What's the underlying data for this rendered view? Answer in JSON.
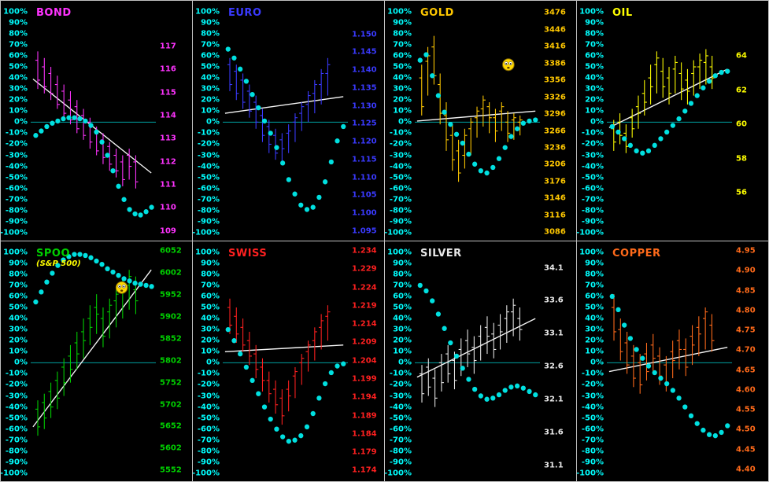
{
  "app": {
    "name": "futures-cycle-dashboard"
  },
  "colors": {
    "background": "#000000",
    "divider": "#c0c0c0",
    "percent_axis": "#00ffff",
    "zero_line": "#00b8b8",
    "cycle_dots": "#00e0e0",
    "trend_line": "#f5f5f5",
    "smiley_face": "#ffd800"
  },
  "percent_axis": {
    "top": 0.045,
    "bottom": 0.967
  },
  "percent_labels": [
    "100%",
    "90%",
    "80%",
    "70%",
    "60%",
    "50%",
    "40%",
    "30%",
    "20%",
    "10%",
    "0%",
    "-10%",
    "-20%",
    "-30%",
    "-40%",
    "-50%",
    "-60%",
    "-70%",
    "-80%",
    "-90%",
    "-100%"
  ],
  "panels": [
    {
      "id": "bond",
      "title": "BOND",
      "color": "#ff33ff",
      "price_labels": [
        "117",
        "116",
        "115",
        "114",
        "113",
        "112",
        "111",
        "110",
        "109"
      ],
      "price_axis": {
        "top": 0.19,
        "bottom": 0.96
      },
      "chart_data": {
        "type": "ohlc-cycle",
        "percent_range": [
          -100,
          100
        ],
        "bars": [
          [
            64,
            30,
            56,
            38
          ],
          [
            58,
            26,
            50,
            32
          ],
          [
            50,
            20,
            44,
            26
          ],
          [
            42,
            12,
            34,
            16
          ],
          [
            34,
            4,
            28,
            8
          ],
          [
            28,
            -2,
            20,
            2
          ],
          [
            20,
            -10,
            14,
            -6
          ],
          [
            12,
            -16,
            6,
            -12
          ],
          [
            4,
            -24,
            0,
            -18
          ],
          [
            -4,
            -30,
            -8,
            -26
          ],
          [
            -10,
            -38,
            -16,
            -32
          ],
          [
            -18,
            -44,
            -22,
            -38
          ],
          [
            -24,
            -50,
            -30,
            -44
          ],
          [
            -30,
            -58,
            -36,
            -52
          ],
          [
            -24,
            -52,
            -30,
            -40
          ],
          [
            -30,
            -60,
            -36,
            -54
          ]
        ],
        "cycle": [
          -12,
          -8,
          -4,
          -1,
          1,
          3,
          4,
          4,
          3,
          1,
          -3,
          -9,
          -18,
          -30,
          -44,
          -58,
          -70,
          -79,
          -83,
          -84,
          -81,
          -77
        ],
        "trend": [
          39,
          -46
        ],
        "smiley": null
      }
    },
    {
      "id": "euro",
      "title": "EURO",
      "color": "#3a3aff",
      "price_labels": [
        "1.150",
        "1.145",
        "1.140",
        "1.135",
        "1.130",
        "1.125",
        "1.120",
        "1.115",
        "1.110",
        "1.105",
        "1.100",
        "1.095"
      ],
      "price_axis": {
        "top": 0.14,
        "bottom": 0.96
      },
      "chart_data": {
        "type": "ohlc-cycle",
        "percent_range": [
          -100,
          100
        ],
        "bars": [
          [
            58,
            28,
            52,
            34
          ],
          [
            52,
            20,
            46,
            26
          ],
          [
            44,
            12,
            38,
            18
          ],
          [
            34,
            4,
            28,
            10
          ],
          [
            24,
            -6,
            18,
            0
          ],
          [
            12,
            -18,
            6,
            -12
          ],
          [
            2,
            -28,
            -4,
            -20
          ],
          [
            -6,
            -34,
            -12,
            -28
          ],
          [
            -10,
            -38,
            -16,
            -24
          ],
          [
            -2,
            -28,
            -10,
            -8
          ],
          [
            8,
            -18,
            0,
            4
          ],
          [
            18,
            -8,
            8,
            14
          ],
          [
            28,
            0,
            16,
            24
          ],
          [
            38,
            8,
            26,
            34
          ],
          [
            48,
            16,
            34,
            44
          ],
          [
            58,
            24,
            44,
            52
          ]
        ],
        "cycle": [
          66,
          58,
          48,
          37,
          25,
          13,
          1,
          -10,
          -23,
          -37,
          -52,
          -65,
          -75,
          -79,
          -77,
          -68,
          -54,
          -36,
          -17,
          -4
        ],
        "trend": [
          8,
          23
        ],
        "smiley": null
      }
    },
    {
      "id": "gold",
      "title": "GOLD",
      "color": "#ffc800",
      "price_labels": [
        "3476",
        "3446",
        "3416",
        "3386",
        "3356",
        "3326",
        "3296",
        "3266",
        "3236",
        "3206",
        "3176",
        "3146",
        "3116",
        "3086"
      ],
      "price_axis": {
        "top": 0.05,
        "bottom": 0.965
      },
      "chart_data": {
        "type": "ohlc-cycle",
        "percent_range": [
          -100,
          100
        ],
        "bars": [
          [
            52,
            6,
            40,
            14
          ],
          [
            68,
            24,
            55,
            60
          ],
          [
            78,
            34,
            68,
            42
          ],
          [
            44,
            -2,
            34,
            8
          ],
          [
            18,
            -26,
            6,
            -16
          ],
          [
            -2,
            -44,
            -12,
            -34
          ],
          [
            -16,
            -54,
            -26,
            -46
          ],
          [
            -6,
            -42,
            -30,
            -12
          ],
          [
            4,
            -30,
            -6,
            0
          ],
          [
            14,
            -14,
            4,
            10
          ],
          [
            24,
            -4,
            12,
            20
          ],
          [
            18,
            -10,
            14,
            4
          ],
          [
            12,
            -18,
            4,
            -8
          ],
          [
            18,
            -8,
            10,
            14
          ],
          [
            10,
            -18,
            0,
            -10
          ],
          [
            8,
            -16,
            2,
            4
          ],
          [
            6,
            -12,
            0,
            2
          ]
        ],
        "cycle": [
          56,
          61,
          42,
          24,
          9,
          -2,
          -11,
          -19,
          -29,
          -38,
          -44,
          -46,
          -41,
          -33,
          -23,
          -13,
          -6,
          -1,
          1,
          2
        ],
        "trend": [
          1,
          10
        ],
        "smiley": {
          "x": 0.74,
          "y": 52,
          "icon": "worried-smiley"
        }
      }
    },
    {
      "id": "oil",
      "title": "OIL",
      "color": "#ffff00",
      "price_labels": [
        "64",
        "62",
        "60",
        "58",
        "56"
      ],
      "price_axis": {
        "top": 0.23,
        "bottom": 0.8
      },
      "chart_data": {
        "type": "ohlc-cycle",
        "percent_range": [
          -100,
          100
        ],
        "bars": [
          [
            2,
            -26,
            -6,
            -18
          ],
          [
            8,
            -20,
            0,
            -12
          ],
          [
            -2,
            -28,
            -10,
            -22
          ],
          [
            12,
            -14,
            4,
            -6
          ],
          [
            24,
            -6,
            14,
            8
          ],
          [
            38,
            6,
            26,
            18
          ],
          [
            52,
            16,
            40,
            32
          ],
          [
            64,
            26,
            52,
            58
          ],
          [
            58,
            22,
            46,
            32
          ],
          [
            50,
            16,
            40,
            26
          ],
          [
            60,
            26,
            48,
            54
          ],
          [
            54,
            20,
            44,
            30
          ],
          [
            48,
            16,
            38,
            28
          ],
          [
            56,
            24,
            44,
            50
          ],
          [
            62,
            30,
            50,
            56
          ],
          [
            66,
            34,
            54,
            60
          ],
          [
            60,
            30,
            50,
            40
          ]
        ],
        "cycle": [
          -4,
          -9,
          -15,
          -21,
          -26,
          -28,
          -26,
          -21,
          -15,
          -9,
          -3,
          3,
          10,
          17,
          24,
          31,
          37,
          42,
          45,
          46
        ],
        "trend": [
          -5,
          48
        ],
        "smiley": null
      }
    },
    {
      "id": "spoo",
      "title": "SPOO",
      "subtitle": "(S&P 500)",
      "color": "#00d000",
      "price_labels": [
        "6052",
        "6002",
        "5952",
        "5902",
        "5852",
        "5802",
        "5752",
        "5702",
        "5652",
        "5602",
        "5552"
      ],
      "price_axis": {
        "top": 0.04,
        "bottom": 0.955
      },
      "chart_data": {
        "type": "ohlc-cycle",
        "percent_range": [
          -100,
          100
        ],
        "bars": [
          [
            -34,
            -66,
            -42,
            -58
          ],
          [
            -28,
            -60,
            -36,
            -50
          ],
          [
            -18,
            -50,
            -26,
            -40
          ],
          [
            -8,
            -42,
            -16,
            -32
          ],
          [
            4,
            -30,
            -4,
            -18
          ],
          [
            16,
            -18,
            6,
            -6
          ],
          [
            28,
            -6,
            18,
            8
          ],
          [
            40,
            4,
            28,
            20
          ],
          [
            52,
            16,
            40,
            32
          ],
          [
            62,
            26,
            50,
            44
          ],
          [
            50,
            14,
            40,
            24
          ],
          [
            58,
            22,
            46,
            52
          ],
          [
            68,
            32,
            56,
            62
          ],
          [
            76,
            40,
            64,
            70
          ],
          [
            84,
            48,
            70,
            78
          ],
          [
            78,
            44,
            66,
            56
          ]
        ],
        "cycle": [
          55,
          64,
          73,
          81,
          88,
          93,
          96,
          98,
          98,
          97,
          95,
          92,
          89,
          85,
          82,
          79,
          76,
          74,
          72,
          71,
          70,
          69
        ],
        "trend": [
          -58,
          84
        ],
        "smiley": {
          "x": 0.72,
          "y": 68,
          "icon": "worried-smiley"
        }
      }
    },
    {
      "id": "swiss",
      "title": "SWISS",
      "color": "#ff2020",
      "price_labels": [
        "1.234",
        "1.229",
        "1.224",
        "1.219",
        "1.214",
        "1.209",
        "1.204",
        "1.199",
        "1.194",
        "1.189",
        "1.184",
        "1.179",
        "1.174"
      ],
      "price_axis": {
        "top": 0.04,
        "bottom": 0.955
      },
      "chart_data": {
        "type": "ohlc-cycle",
        "percent_range": [
          -100,
          100
        ],
        "bars": [
          [
            58,
            26,
            50,
            34
          ],
          [
            50,
            18,
            42,
            26
          ],
          [
            40,
            10,
            32,
            16
          ],
          [
            28,
            -2,
            20,
            6
          ],
          [
            16,
            -14,
            8,
            -6
          ],
          [
            4,
            -26,
            -4,
            -16
          ],
          [
            -8,
            -36,
            -16,
            -28
          ],
          [
            -16,
            -46,
            -24,
            -38
          ],
          [
            -24,
            -56,
            -32,
            -48
          ],
          [
            -16,
            -44,
            -24,
            -30
          ],
          [
            -4,
            -32,
            -12,
            -8
          ],
          [
            8,
            -20,
            0,
            4
          ],
          [
            20,
            -8,
            10,
            16
          ],
          [
            32,
            2,
            20,
            28
          ],
          [
            44,
            12,
            32,
            38
          ],
          [
            52,
            20,
            42,
            46
          ]
        ],
        "cycle": [
          30,
          20,
          8,
          -4,
          -16,
          -28,
          -40,
          -51,
          -60,
          -67,
          -71,
          -70,
          -66,
          -58,
          -46,
          -32,
          -19,
          -9,
          -3,
          -1
        ],
        "trend": [
          10,
          16
        ],
        "smiley": null
      }
    },
    {
      "id": "silver",
      "title": "SILVER",
      "color": "#e8e8e8",
      "price_labels": [
        "34.1",
        "33.6",
        "33.1",
        "32.6",
        "32.1",
        "31.6",
        "31.1"
      ],
      "price_axis": {
        "top": 0.11,
        "bottom": 0.935
      },
      "chart_data": {
        "type": "ohlc-cycle",
        "percent_range": [
          -100,
          100
        ],
        "bars": [
          [
            -2,
            -36,
            -10,
            -28
          ],
          [
            4,
            -30,
            -4,
            -22
          ],
          [
            -6,
            -40,
            -14,
            -32
          ],
          [
            8,
            -26,
            0,
            -18
          ],
          [
            16,
            -18,
            8,
            -10
          ],
          [
            10,
            -24,
            2,
            -16
          ],
          [
            22,
            -12,
            12,
            -4
          ],
          [
            30,
            -4,
            20,
            8
          ],
          [
            24,
            -10,
            14,
            2
          ],
          [
            34,
            2,
            24,
            16
          ],
          [
            42,
            8,
            32,
            24
          ],
          [
            36,
            4,
            26,
            12
          ],
          [
            44,
            12,
            34,
            28
          ],
          [
            52,
            18,
            40,
            46
          ],
          [
            58,
            24,
            46,
            52
          ],
          [
            50,
            20,
            40,
            30
          ]
        ],
        "cycle": [
          70,
          65,
          56,
          44,
          31,
          18,
          6,
          -5,
          -15,
          -24,
          -30,
          -33,
          -32,
          -29,
          -25,
          -22,
          -21,
          -23,
          -26,
          -29
        ],
        "trend": [
          -13,
          40
        ],
        "smiley": null
      }
    },
    {
      "id": "copper",
      "title": "COPPER",
      "color": "#ff6a1a",
      "price_labels": [
        "4.95",
        "4.90",
        "4.85",
        "4.80",
        "4.75",
        "4.70",
        "4.65",
        "4.60",
        "4.55",
        "4.50",
        "4.45",
        "4.40"
      ],
      "price_axis": {
        "top": 0.04,
        "bottom": 0.95
      },
      "chart_data": {
        "type": "ohlc-cycle",
        "percent_range": [
          -100,
          100
        ],
        "bars": [
          [
            62,
            20,
            50,
            28
          ],
          [
            40,
            2,
            30,
            10
          ],
          [
            28,
            -10,
            18,
            -2
          ],
          [
            16,
            -22,
            6,
            -14
          ],
          [
            8,
            -28,
            0,
            -20
          ],
          [
            18,
            -16,
            8,
            -8
          ],
          [
            26,
            -8,
            16,
            4
          ],
          [
            14,
            -20,
            6,
            -12
          ],
          [
            6,
            -26,
            -2,
            -18
          ],
          [
            20,
            -14,
            10,
            2
          ],
          [
            30,
            -6,
            20,
            12
          ],
          [
            22,
            -12,
            12,
            -4
          ],
          [
            34,
            -2,
            24,
            16
          ],
          [
            42,
            6,
            32,
            26
          ],
          [
            50,
            12,
            40,
            46
          ],
          [
            44,
            10,
            34,
            20
          ]
        ],
        "cycle": [
          60,
          48,
          34,
          22,
          12,
          4,
          -3,
          -9,
          -14,
          -19,
          -25,
          -32,
          -40,
          -48,
          -55,
          -61,
          -65,
          -66,
          -63,
          -57
        ],
        "trend": [
          -8,
          14
        ],
        "smiley": null
      }
    }
  ]
}
